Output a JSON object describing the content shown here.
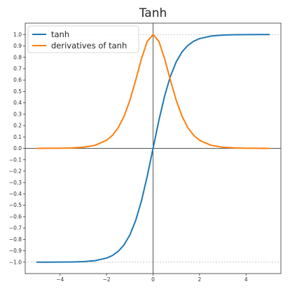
{
  "chart_data": {
    "type": "line",
    "title": "Tanh",
    "xlabel": "",
    "ylabel": "",
    "xlim": [
      -5.5,
      5.5
    ],
    "ylim": [
      -1.1,
      1.1
    ],
    "x_ticks": [
      -4,
      -2,
      0,
      2,
      4
    ],
    "y_ticks": [
      -1.0,
      -0.9,
      -0.8,
      -0.7,
      -0.6,
      -0.5,
      -0.4,
      -0.3,
      -0.2,
      -0.1,
      0.0,
      0.1,
      0.2,
      0.3,
      0.4,
      0.5,
      0.6,
      0.7,
      0.8,
      0.9,
      1.0
    ],
    "x_ticks_text": [
      "−4",
      "−2",
      "0",
      "2",
      "4"
    ],
    "y_ticks_text": [
      "−1.0",
      "−0.9",
      "−0.8",
      "−0.7",
      "−0.6",
      "−0.5",
      "−0.4",
      "−0.3",
      "−0.2",
      "−0.1",
      "0.0",
      "0.1",
      "0.2",
      "0.3",
      "0.4",
      "0.5",
      "0.6",
      "0.7",
      "0.8",
      "0.9",
      "1.0"
    ],
    "grid": false,
    "reference_lines": {
      "horizontal": [
        -1.0,
        0.0,
        1.0
      ],
      "vertical": [
        0
      ]
    },
    "legend_position": "top-left",
    "x": [
      -5.0,
      -4.5,
      -4.0,
      -3.5,
      -3.0,
      -2.5,
      -2.0,
      -1.75,
      -1.5,
      -1.25,
      -1.0,
      -0.75,
      -0.5,
      -0.25,
      0.0,
      0.25,
      0.5,
      0.75,
      1.0,
      1.25,
      1.5,
      1.75,
      2.0,
      2.5,
      3.0,
      3.5,
      4.0,
      4.5,
      5.0
    ],
    "series": [
      {
        "name": "tanh",
        "color": "#1f77b4",
        "values": [
          -0.9999,
          -0.9998,
          -0.9993,
          -0.9982,
          -0.9951,
          -0.9866,
          -0.964,
          -0.9414,
          -0.9051,
          -0.8483,
          -0.7616,
          -0.6351,
          -0.4621,
          -0.2449,
          0.0,
          0.2449,
          0.4621,
          0.6351,
          0.7616,
          0.8483,
          0.9051,
          0.9414,
          0.964,
          0.9866,
          0.9951,
          0.9982,
          0.9993,
          0.9998,
          0.9999
        ]
      },
      {
        "name": "derivatives of tanh",
        "color": "#ff7f0e",
        "values": [
          0.0002,
          0.0005,
          0.0013,
          0.0036,
          0.0099,
          0.0266,
          0.0707,
          0.1138,
          0.1807,
          0.2804,
          0.42,
          0.5966,
          0.7864,
          0.94,
          1.0,
          0.94,
          0.7864,
          0.5966,
          0.42,
          0.2804,
          0.1807,
          0.1138,
          0.0707,
          0.0266,
          0.0099,
          0.0036,
          0.0013,
          0.0005,
          0.0002
        ]
      }
    ]
  }
}
